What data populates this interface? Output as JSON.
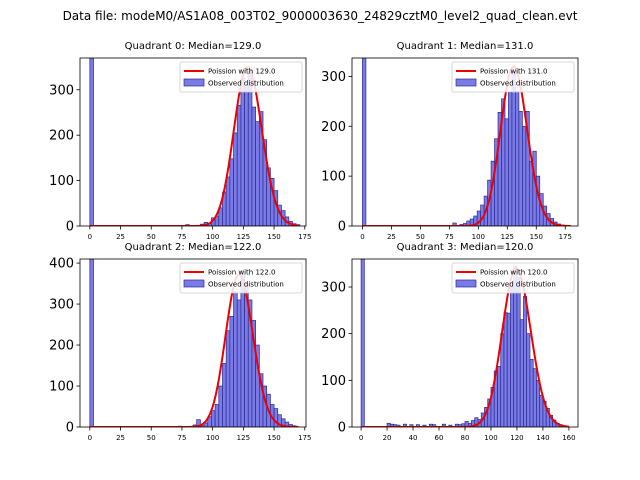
{
  "suptitle": "Data file: modeM0/AS1A08_003T02_9000003630_24829cztM0_level2_quad_clean.evt",
  "colors": {
    "bar_fill": "#7b7be8",
    "bar_edge": "#2a2a90",
    "poisson_line": "#ee0000"
  },
  "legend": {
    "observed_label": "Observed distribution"
  },
  "chart_data": [
    {
      "type": "bar",
      "title": "Quadrant 0: Median=129.0",
      "legend_poisson": "Poission with 129.0",
      "xlim": [
        -8,
        176
      ],
      "ylim": [
        0,
        370
      ],
      "xticks": [
        0,
        25,
        50,
        75,
        100,
        125,
        150,
        175
      ],
      "yticks": [
        0,
        100,
        200,
        300
      ],
      "bins": [
        [
          0,
          3,
          370
        ],
        [
          78,
          81,
          3
        ],
        [
          84,
          87,
          1
        ],
        [
          90,
          93,
          4
        ],
        [
          93,
          96,
          8
        ],
        [
          96,
          99,
          5
        ],
        [
          99,
          102,
          18
        ],
        [
          102,
          105,
          22
        ],
        [
          105,
          108,
          40
        ],
        [
          108,
          111,
          75
        ],
        [
          111,
          114,
          108
        ],
        [
          114,
          117,
          148
        ],
        [
          117,
          120,
          205
        ],
        [
          120,
          123,
          266
        ],
        [
          123,
          126,
          325
        ],
        [
          126,
          129,
          305
        ],
        [
          129,
          132,
          340
        ],
        [
          132,
          135,
          262
        ],
        [
          135,
          138,
          230
        ],
        [
          138,
          141,
          252
        ],
        [
          141,
          144,
          190
        ],
        [
          144,
          147,
          128
        ],
        [
          147,
          150,
          105
        ],
        [
          150,
          153,
          78
        ],
        [
          153,
          156,
          46
        ],
        [
          156,
          159,
          34
        ],
        [
          159,
          162,
          20
        ],
        [
          162,
          165,
          10
        ],
        [
          165,
          168,
          5
        ],
        [
          168,
          171,
          3
        ]
      ],
      "poisson_mean": 129.0,
      "poisson_peak": 350,
      "poisson_range": [
        0,
        170
      ]
    },
    {
      "type": "bar",
      "title": "Quadrant 1: Median=131.0",
      "legend_poisson": "Poission with 131.0",
      "xlim": [
        -9,
        186
      ],
      "ylim": [
        0,
        337
      ],
      "xticks": [
        0,
        25,
        50,
        75,
        100,
        125,
        150,
        175
      ],
      "yticks": [
        0,
        100,
        200,
        300
      ],
      "bins": [
        [
          0,
          3,
          337
        ],
        [
          72,
          75,
          1
        ],
        [
          78,
          81,
          6
        ],
        [
          84,
          87,
          3
        ],
        [
          87,
          90,
          5
        ],
        [
          90,
          93,
          10
        ],
        [
          93,
          96,
          14
        ],
        [
          96,
          99,
          20
        ],
        [
          99,
          102,
          30
        ],
        [
          102,
          105,
          42
        ],
        [
          105,
          108,
          60
        ],
        [
          108,
          111,
          92
        ],
        [
          111,
          114,
          130
        ],
        [
          114,
          117,
          175
        ],
        [
          117,
          120,
          228
        ],
        [
          120,
          123,
          255
        ],
        [
          123,
          126,
          215
        ],
        [
          126,
          129,
          268
        ],
        [
          129,
          132,
          310
        ],
        [
          132,
          135,
          270
        ],
        [
          135,
          138,
          230
        ],
        [
          138,
          141,
          200
        ],
        [
          141,
          144,
          230
        ],
        [
          144,
          147,
          130
        ],
        [
          147,
          150,
          150
        ],
        [
          150,
          153,
          100
        ],
        [
          153,
          156,
          65
        ],
        [
          156,
          159,
          40
        ],
        [
          159,
          162,
          25
        ],
        [
          162,
          165,
          15
        ],
        [
          165,
          168,
          8
        ],
        [
          168,
          171,
          4
        ],
        [
          171,
          174,
          2
        ],
        [
          174,
          177,
          1
        ]
      ],
      "poisson_mean": 131.0,
      "poisson_peak": 320,
      "poisson_range": [
        0,
        180
      ]
    },
    {
      "type": "bar",
      "title": "Quadrant 2: Median=122.0",
      "legend_poisson": "Poission with 122.0",
      "xlim": [
        -8,
        176
      ],
      "ylim": [
        0,
        410
      ],
      "xticks": [
        0,
        25,
        50,
        75,
        100,
        125,
        150,
        175
      ],
      "yticks": [
        0,
        100,
        200,
        300,
        400
      ],
      "bins": [
        [
          0,
          3,
          410
        ],
        [
          72,
          75,
          2
        ],
        [
          84,
          87,
          5
        ],
        [
          87,
          90,
          18
        ],
        [
          90,
          93,
          3
        ],
        [
          93,
          96,
          10
        ],
        [
          96,
          99,
          25
        ],
        [
          99,
          102,
          40
        ],
        [
          102,
          105,
          55
        ],
        [
          105,
          108,
          100
        ],
        [
          108,
          111,
          155
        ],
        [
          111,
          114,
          235
        ],
        [
          114,
          117,
          270
        ],
        [
          117,
          120,
          330
        ],
        [
          120,
          123,
          310
        ],
        [
          123,
          126,
          380
        ],
        [
          126,
          129,
          350
        ],
        [
          129,
          132,
          310
        ],
        [
          132,
          135,
          260
        ],
        [
          135,
          138,
          200
        ],
        [
          138,
          141,
          130
        ],
        [
          141,
          144,
          100
        ],
        [
          144,
          147,
          80
        ],
        [
          147,
          150,
          55
        ],
        [
          150,
          153,
          45
        ],
        [
          153,
          156,
          30
        ],
        [
          156,
          159,
          20
        ],
        [
          159,
          162,
          12
        ],
        [
          162,
          165,
          6
        ],
        [
          165,
          168,
          3
        ]
      ],
      "poisson_mean": 122.0,
      "poisson_peak": 372,
      "poisson_range": [
        0,
        170
      ]
    },
    {
      "type": "bar",
      "title": "Quadrant 3: Median=120.0",
      "legend_poisson": "Poission with 120.0",
      "xlim": [
        -7,
        167
      ],
      "ylim": [
        0,
        360
      ],
      "xticks": [
        0,
        20,
        40,
        60,
        80,
        100,
        120,
        140,
        160
      ],
      "yticks": [
        0,
        100,
        200,
        300
      ],
      "bins": [
        [
          0,
          2.5,
          360
        ],
        [
          20,
          22.5,
          8
        ],
        [
          22.5,
          25,
          6
        ],
        [
          25,
          27.5,
          5
        ],
        [
          27.5,
          30,
          4
        ],
        [
          32.5,
          35,
          6
        ],
        [
          37.5,
          40,
          5
        ],
        [
          42.5,
          45,
          5
        ],
        [
          47.5,
          50,
          4
        ],
        [
          52.5,
          55,
          6
        ],
        [
          55,
          57.5,
          5
        ],
        [
          62.5,
          65,
          6
        ],
        [
          67.5,
          70,
          4
        ],
        [
          72.5,
          75,
          6
        ],
        [
          75,
          77.5,
          5
        ],
        [
          77.5,
          80,
          7
        ],
        [
          80,
          82.5,
          12
        ],
        [
          82.5,
          85,
          8
        ],
        [
          85,
          87.5,
          14
        ],
        [
          87.5,
          90,
          20
        ],
        [
          90,
          92.5,
          16
        ],
        [
          92.5,
          95,
          30
        ],
        [
          95,
          97.5,
          42
        ],
        [
          97.5,
          100,
          60
        ],
        [
          100,
          102.5,
          85
        ],
        [
          102.5,
          105,
          120
        ],
        [
          105,
          107.5,
          130
        ],
        [
          107.5,
          110,
          200
        ],
        [
          110,
          112.5,
          245
        ],
        [
          112.5,
          115,
          244
        ],
        [
          115,
          117.5,
          300
        ],
        [
          117.5,
          120,
          345
        ],
        [
          120,
          122.5,
          320
        ],
        [
          122.5,
          125,
          230
        ],
        [
          125,
          127.5,
          280
        ],
        [
          127.5,
          130,
          200
        ],
        [
          130,
          132.5,
          145
        ],
        [
          132.5,
          135,
          125
        ],
        [
          135,
          137.5,
          100
        ],
        [
          137.5,
          140,
          68
        ],
        [
          140,
          142.5,
          55
        ],
        [
          142.5,
          145,
          40
        ],
        [
          145,
          147.5,
          25
        ],
        [
          147.5,
          150,
          15
        ],
        [
          150,
          152.5,
          8
        ],
        [
          152.5,
          155,
          5
        ],
        [
          155,
          157.5,
          2
        ]
      ],
      "poisson_mean": 120.0,
      "poisson_peak": 340,
      "poisson_range": [
        0,
        160
      ]
    }
  ]
}
